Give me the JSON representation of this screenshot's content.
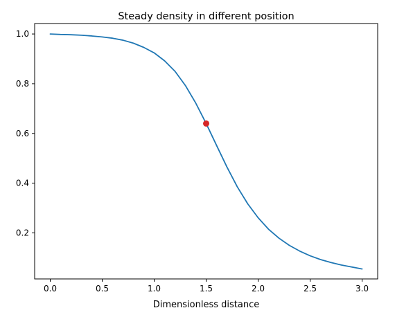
{
  "chart_data": {
    "type": "line",
    "title": "Steady density in different position",
    "xlabel": "Dimensionless distance",
    "ylabel": "",
    "xlim": [
      -0.15,
      3.15
    ],
    "ylim": [
      0.015,
      1.042
    ],
    "x_ticks": [
      0.0,
      0.5,
      1.0,
      1.5,
      2.0,
      2.5,
      3.0
    ],
    "x_tick_labels": [
      "0.0",
      "0.5",
      "1.0",
      "1.5",
      "2.0",
      "2.5",
      "3.0"
    ],
    "y_ticks": [
      0.2,
      0.4,
      0.6,
      0.8,
      1.0
    ],
    "y_tick_labels": [
      "0.2",
      "0.4",
      "0.6",
      "0.8",
      "1.0"
    ],
    "grid": false,
    "series": [
      {
        "color": "#1f77b4",
        "x": [
          0.0,
          0.1,
          0.2,
          0.3,
          0.4,
          0.5,
          0.6,
          0.7,
          0.8,
          0.9,
          1.0,
          1.1,
          1.2,
          1.3,
          1.4,
          1.5,
          1.6,
          1.7,
          1.8,
          1.9,
          2.0,
          2.1,
          2.2,
          2.3,
          2.4,
          2.5,
          2.6,
          2.7,
          2.8,
          2.9,
          3.0
        ],
        "y": [
          1.0,
          0.998,
          0.997,
          0.995,
          0.992,
          0.988,
          0.983,
          0.975,
          0.963,
          0.946,
          0.924,
          0.892,
          0.85,
          0.793,
          0.722,
          0.64,
          0.552,
          0.465,
          0.385,
          0.317,
          0.261,
          0.215,
          0.179,
          0.15,
          0.127,
          0.108,
          0.093,
          0.081,
          0.071,
          0.063,
          0.055
        ]
      }
    ],
    "highlight_point": {
      "x": 1.5,
      "y": 0.64,
      "color": "#d62728"
    }
  }
}
